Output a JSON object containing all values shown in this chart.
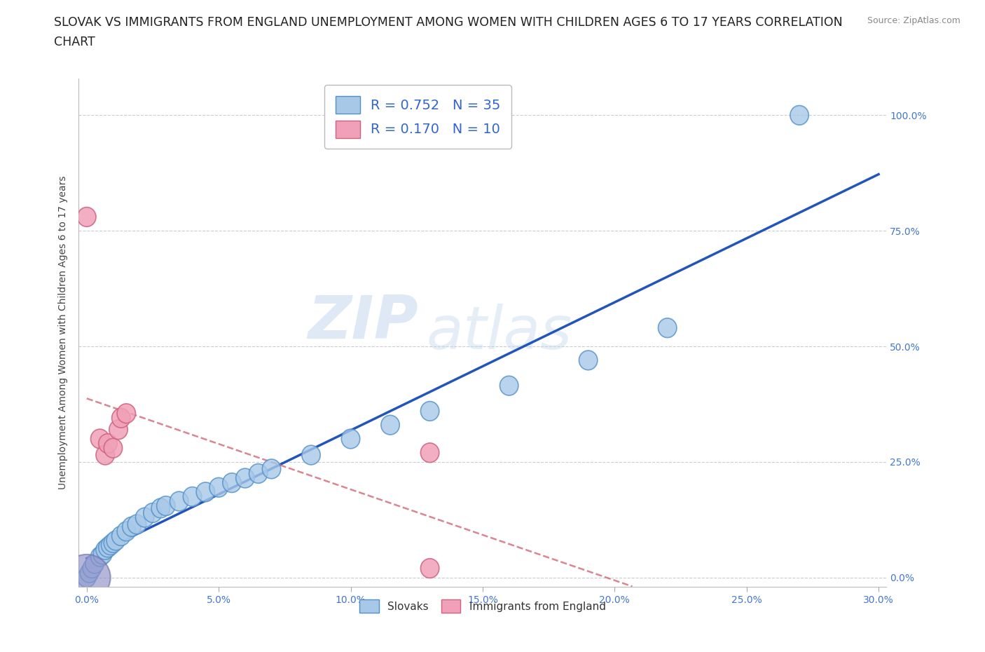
{
  "title": "SLOVAK VS IMMIGRANTS FROM ENGLAND UNEMPLOYMENT AMONG WOMEN WITH CHILDREN AGES 6 TO 17 YEARS CORRELATION\nCHART",
  "source_text": "Source: ZipAtlas.com",
  "ylabel_label": "Unemployment Among Women with Children Ages 6 to 17 years",
  "xlim": [
    0.0,
    0.3
  ],
  "ylim": [
    0.0,
    1.05
  ],
  "slovak_color": "#a8c8e8",
  "immigrant_color": "#f0a0b8",
  "slovak_edge": "#5090c8",
  "immigrant_edge": "#d06080",
  "regression_slovak_color": "#2255bb",
  "regression_immigrant_color": "#d06878",
  "R_slovak": 0.752,
  "N_slovak": 35,
  "R_immigrant": 0.17,
  "N_immigrant": 10,
  "watermark_zip": "ZIP",
  "watermark_atlas": "atlas",
  "grid_color": "#cccccc",
  "background_color": "#ffffff",
  "title_fontsize": 13,
  "axis_label_fontsize": 10,
  "tick_fontsize": 10,
  "legend_fontsize": 14,
  "tick_color": "#4477cc",
  "slovak_x": [
    0.0,
    0.001,
    0.002,
    0.003,
    0.005,
    0.006,
    0.007,
    0.008,
    0.009,
    0.01,
    0.011,
    0.013,
    0.015,
    0.017,
    0.019,
    0.022,
    0.025,
    0.028,
    0.03,
    0.035,
    0.04,
    0.045,
    0.05,
    0.055,
    0.06,
    0.065,
    0.07,
    0.085,
    0.1,
    0.115,
    0.13,
    0.16,
    0.19,
    0.22,
    0.27
  ],
  "slovak_y": [
    0.0,
    0.01,
    0.02,
    0.03,
    0.045,
    0.05,
    0.06,
    0.065,
    0.07,
    0.075,
    0.08,
    0.09,
    0.1,
    0.11,
    0.115,
    0.13,
    0.14,
    0.15,
    0.155,
    0.165,
    0.175,
    0.185,
    0.195,
    0.205,
    0.215,
    0.225,
    0.235,
    0.265,
    0.3,
    0.33,
    0.36,
    0.415,
    0.47,
    0.54,
    1.0
  ],
  "immigrant_x": [
    0.0,
    0.005,
    0.007,
    0.008,
    0.01,
    0.012,
    0.013,
    0.015,
    0.13,
    0.13
  ],
  "immigrant_y": [
    0.78,
    0.3,
    0.265,
    0.29,
    0.28,
    0.32,
    0.345,
    0.355,
    0.27,
    0.02
  ]
}
